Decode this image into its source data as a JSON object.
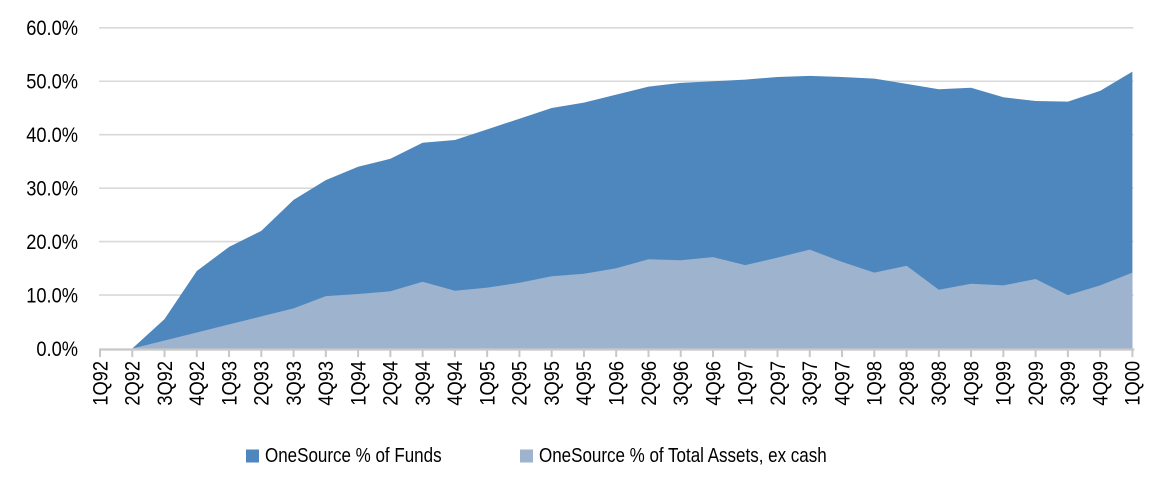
{
  "chart_data": {
    "type": "area",
    "mode": "overlapping",
    "title": "",
    "xlabel": "",
    "ylabel": "",
    "ylim": [
      0,
      60
    ],
    "grid": "horizontal",
    "legend_position": "bottom-center",
    "y_ticks": [
      "0.0%",
      "10.0%",
      "20.0%",
      "30.0%",
      "40.0%",
      "50.0%",
      "60.0%"
    ],
    "categories": [
      "1Q92",
      "2Q92",
      "3Q92",
      "4Q92",
      "1Q93",
      "2Q93",
      "3Q93",
      "4Q93",
      "1Q94",
      "2Q94",
      "3Q94",
      "4Q94",
      "1Q95",
      "2Q95",
      "3Q95",
      "4Q95",
      "1Q96",
      "2Q96",
      "3Q96",
      "4Q96",
      "1Q97",
      "2Q97",
      "3Q97",
      "4Q97",
      "1Q98",
      "2Q98",
      "3Q98",
      "4Q98",
      "1Q99",
      "2Q99",
      "3Q99",
      "4Q99",
      "1Q00"
    ],
    "series": [
      {
        "name": "OneSource % of Funds",
        "color": "#4E87BE",
        "values": [
          0,
          0,
          5.5,
          14.5,
          19,
          22,
          27.8,
          31.5,
          34,
          35.5,
          38.5,
          39,
          41,
          43,
          45,
          46,
          47.5,
          49,
          49.7,
          50,
          50.3,
          50.8,
          51,
          50.8,
          50.5,
          49.5,
          48.5,
          48.8,
          47,
          46.3,
          46.2,
          48.2,
          51.8
        ]
      },
      {
        "name": "OneSource % of Total Assets, ex cash",
        "color": "#9DB3CE",
        "values": [
          0,
          0,
          1.5,
          3,
          4.5,
          6,
          7.5,
          9.8,
          10.2,
          10.7,
          12.5,
          10.8,
          11.4,
          12.3,
          13.5,
          14,
          15,
          16.7,
          16.5,
          17.1,
          15.6,
          17,
          18.5,
          16.2,
          14.2,
          15.5,
          11,
          12.1,
          11.8,
          13,
          10,
          11.8,
          14.2
        ]
      }
    ],
    "colors": {
      "gridline": "#D9D9D9",
      "axis": "#C8C8C8",
      "tick": "#C8C8C8",
      "label_text": "#000000",
      "background": "#FFFFFF"
    }
  }
}
